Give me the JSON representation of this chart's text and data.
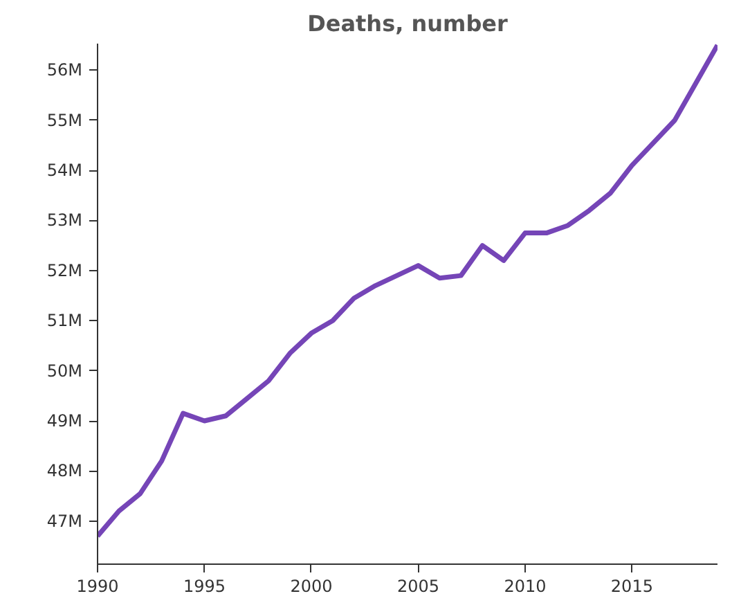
{
  "chart_data": {
    "type": "line",
    "title": "Deaths, number",
    "x": [
      1990,
      1991,
      1992,
      1993,
      1994,
      1995,
      1996,
      1997,
      1998,
      1999,
      2000,
      2001,
      2002,
      2003,
      2004,
      2005,
      2006,
      2007,
      2008,
      2009,
      2010,
      2011,
      2012,
      2013,
      2014,
      2015,
      2016,
      2017,
      2018,
      2019
    ],
    "series": [
      {
        "color": "#7545b7",
        "values": [
          46700000,
          47200000,
          47550000,
          48200000,
          49150000,
          49000000,
          49100000,
          49450000,
          49800000,
          50350000,
          50750000,
          51000000,
          51450000,
          51700000,
          51900000,
          52100000,
          51850000,
          51900000,
          52500000,
          52200000,
          52750000,
          52750000,
          52900000,
          53200000,
          53550000,
          54100000,
          54550000,
          55000000,
          55750000,
          56500000
        ]
      }
    ],
    "xlim": [
      1990,
      2019
    ],
    "xticks": [
      1990,
      1995,
      2000,
      2005,
      2010,
      2015
    ],
    "ylim": [
      46140000,
      56530000
    ],
    "yticks": [
      {
        "value": 47000000,
        "label": "47M"
      },
      {
        "value": 48000000,
        "label": "48M"
      },
      {
        "value": 49000000,
        "label": "49M"
      },
      {
        "value": 50000000,
        "label": "50M"
      },
      {
        "value": 51000000,
        "label": "51M"
      },
      {
        "value": 52000000,
        "label": "52M"
      },
      {
        "value": 53000000,
        "label": "53M"
      },
      {
        "value": 54000000,
        "label": "54M"
      },
      {
        "value": 55000000,
        "label": "55M"
      },
      {
        "value": 56000000,
        "label": "56M"
      }
    ],
    "grid": false,
    "marker": "none",
    "line_style": "solid"
  }
}
